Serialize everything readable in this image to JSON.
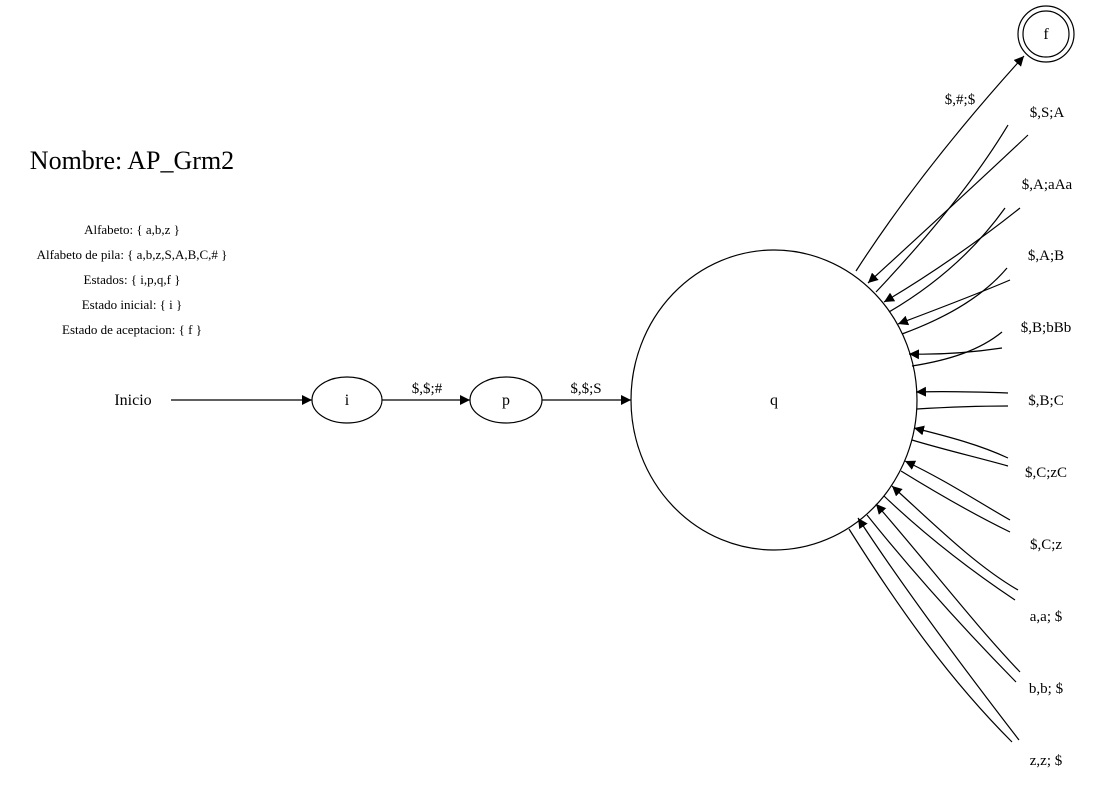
{
  "automaton": {
    "name": "Nombre: AP_Grm2",
    "info": [
      "Alfabeto: { a,b,z }",
      "Alfabeto de pila: { a,b,z,S,A,B,C,# }",
      "Estados: { i,p,q,f }",
      "Estado inicial: { i }",
      "Estado de aceptacion: { f }"
    ],
    "start_label": "Inicio",
    "states": {
      "i": "i",
      "p": "p",
      "q": "q",
      "f": "f"
    },
    "accepting": [
      "f"
    ],
    "transitions": [
      {
        "from": "i",
        "to": "p",
        "label": "$,$;#"
      },
      {
        "from": "p",
        "to": "q",
        "label": "$,$;S"
      },
      {
        "from": "q",
        "to": "f",
        "label": "$,#;$"
      },
      {
        "from": "q",
        "to": "q",
        "label": "$,S;A"
      },
      {
        "from": "q",
        "to": "q",
        "label": "$,A;aAa"
      },
      {
        "from": "q",
        "to": "q",
        "label": "$,A;B"
      },
      {
        "from": "q",
        "to": "q",
        "label": "$,B;bBb"
      },
      {
        "from": "q",
        "to": "q",
        "label": "$,B;C"
      },
      {
        "from": "q",
        "to": "q",
        "label": "$,C;zC"
      },
      {
        "from": "q",
        "to": "q",
        "label": "$,C;z"
      },
      {
        "from": "q",
        "to": "q",
        "label": "a,a; $"
      },
      {
        "from": "q",
        "to": "q",
        "label": "b,b; $"
      },
      {
        "from": "q",
        "to": "q",
        "label": "z,z; $"
      }
    ]
  }
}
